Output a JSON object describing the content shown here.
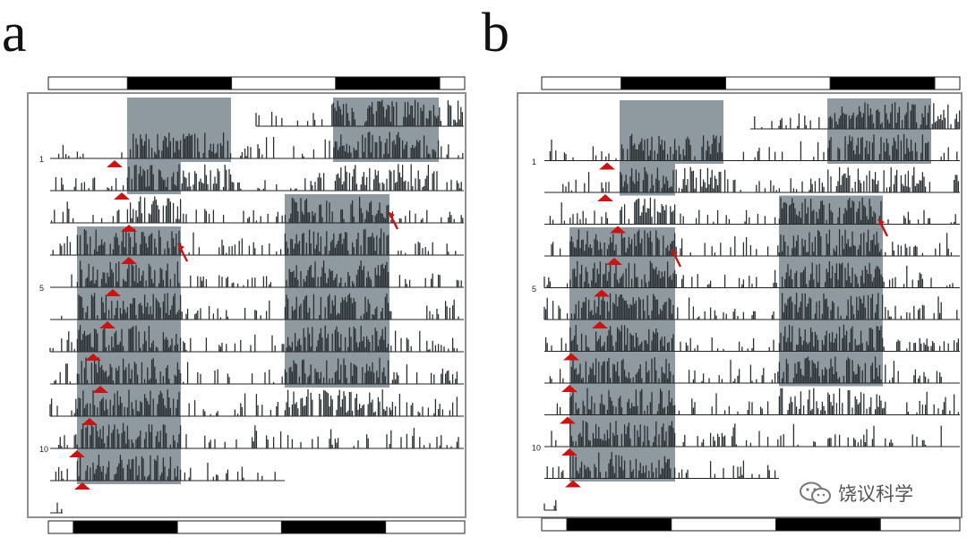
{
  "panels": [
    {
      "id": "a",
      "label": "a",
      "day_labels": [
        "1",
        "5",
        "10"
      ],
      "day_label_rows": [
        1,
        5,
        10
      ],
      "rows": 12,
      "top_bar": [
        "light",
        "dark",
        "light",
        "dark",
        "light"
      ],
      "top_bar_fractions": [
        0.19,
        0.25,
        0.25,
        0.25,
        0.06
      ],
      "bottom_bar": [
        "light",
        "dark",
        "light",
        "dark",
        "light"
      ],
      "bottom_bar_fractions": [
        0.06,
        0.25,
        0.25,
        0.25,
        0.19
      ],
      "arrowhead_rows": [
        1,
        2,
        3,
        4,
        5,
        6,
        7,
        8,
        9,
        10,
        11,
        12
      ],
      "arrow_rows": [
        3,
        4
      ]
    },
    {
      "id": "b",
      "label": "b",
      "day_labels": [
        "1",
        "5",
        "10"
      ],
      "day_label_rows": [
        1,
        5,
        10
      ],
      "rows": 12,
      "top_bar": [
        "light",
        "dark",
        "light",
        "dark",
        "light"
      ],
      "top_bar_fractions": [
        0.19,
        0.25,
        0.25,
        0.25,
        0.06
      ],
      "bottom_bar": [
        "light",
        "dark",
        "light",
        "dark",
        "light"
      ],
      "bottom_bar_fractions": [
        0.06,
        0.25,
        0.25,
        0.25,
        0.19
      ],
      "arrowhead_rows": [
        1,
        2,
        3,
        4,
        5,
        6,
        7,
        8,
        9,
        10,
        11,
        12
      ],
      "arrow_rows": [
        3,
        4
      ]
    }
  ],
  "watermark": {
    "text": "饶议科学",
    "icon": "wechat-icon"
  },
  "colors": {
    "shade": "#8e99a0",
    "activity": "#2a3033",
    "arrowhead": "#c81414",
    "bar_dark": "#000000"
  }
}
